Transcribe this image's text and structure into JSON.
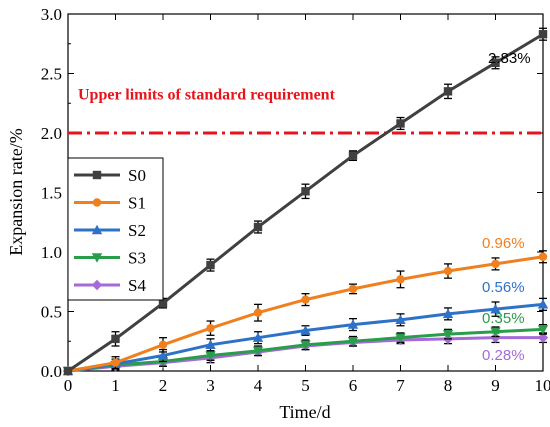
{
  "chart_data": {
    "type": "line",
    "title": "",
    "xlabel": "Time/d",
    "ylabel": "Expansion rate/%",
    "xlim": [
      0,
      10
    ],
    "ylim": [
      0,
      3.0
    ],
    "x_ticks": [
      "0",
      "1",
      "2",
      "3",
      "4",
      "5",
      "6",
      "7",
      "8",
      "9",
      "10"
    ],
    "y_ticks": [
      "0.0",
      "0.5",
      "1.0",
      "1.5",
      "2.0",
      "2.5",
      "3.0"
    ],
    "grid": false,
    "legend_position": "center-left",
    "x": [
      0,
      1,
      2,
      3,
      4,
      5,
      6,
      7,
      8,
      9,
      10
    ],
    "series": [
      {
        "name": "S0",
        "color": "#404040",
        "marker": "square",
        "values": [
          0.0,
          0.27,
          0.57,
          0.89,
          1.21,
          1.51,
          1.81,
          2.08,
          2.35,
          2.59,
          2.83
        ],
        "errors": [
          0.0,
          0.06,
          0.04,
          0.05,
          0.05,
          0.06,
          0.04,
          0.05,
          0.06,
          0.05,
          0.05
        ]
      },
      {
        "name": "S1",
        "color": "#f07f1d",
        "marker": "circle",
        "values": [
          0.0,
          0.07,
          0.22,
          0.36,
          0.49,
          0.6,
          0.69,
          0.77,
          0.84,
          0.9,
          0.96
        ],
        "errors": [
          0.0,
          0.05,
          0.06,
          0.06,
          0.07,
          0.05,
          0.04,
          0.07,
          0.06,
          0.05,
          0.05
        ]
      },
      {
        "name": "S2",
        "color": "#2e72c8",
        "marker": "triangle-up",
        "values": [
          0.0,
          0.06,
          0.13,
          0.22,
          0.28,
          0.34,
          0.39,
          0.43,
          0.48,
          0.52,
          0.56
        ],
        "errors": [
          0.0,
          0.04,
          0.05,
          0.05,
          0.05,
          0.04,
          0.05,
          0.05,
          0.05,
          0.06,
          0.05
        ]
      },
      {
        "name": "S3",
        "color": "#2a9d4b",
        "marker": "triangle-down",
        "values": [
          0.0,
          0.05,
          0.08,
          0.13,
          0.17,
          0.22,
          0.25,
          0.28,
          0.31,
          0.33,
          0.35
        ],
        "errors": [
          0.0,
          0.03,
          0.04,
          0.04,
          0.04,
          0.04,
          0.04,
          0.04,
          0.04,
          0.04,
          0.04
        ]
      },
      {
        "name": "S4",
        "color": "#a66ad7",
        "marker": "diamond",
        "values": [
          0.0,
          0.04,
          0.07,
          0.11,
          0.16,
          0.21,
          0.24,
          0.26,
          0.27,
          0.28,
          0.28
        ],
        "errors": [
          0.0,
          0.03,
          0.03,
          0.04,
          0.03,
          0.03,
          0.03,
          0.03,
          0.04,
          0.04,
          0.04
        ]
      }
    ],
    "reference_line": {
      "value": 2.0,
      "label": "Upper limits of standard requirement",
      "color": "#e8141b"
    },
    "annotations": [
      {
        "text": "2.83%",
        "color": "#000000"
      },
      {
        "text": "0.96%",
        "color": "#f07f1d"
      },
      {
        "text": "0.56%",
        "color": "#2e72c8"
      },
      {
        "text": "0.35%",
        "color": "#2a9d4b"
      },
      {
        "text": "0.28%",
        "color": "#a66ad7"
      }
    ]
  }
}
